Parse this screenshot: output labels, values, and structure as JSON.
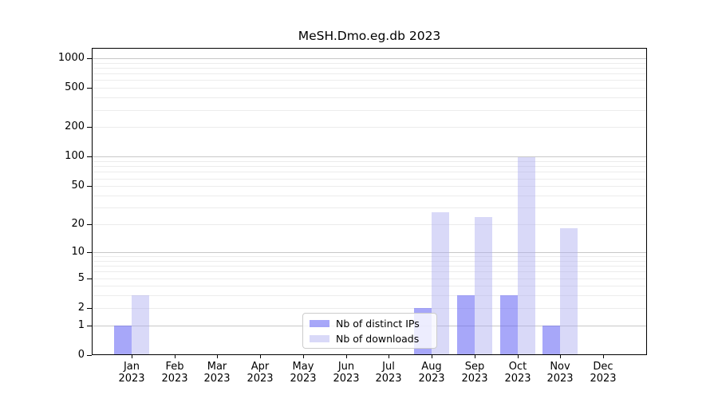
{
  "title": "MeSH.Dmo.eg.db 2023",
  "legend": [
    {
      "label": "Nb of distinct IPs",
      "color": "rgba(100,100,245,0.57)"
    },
    {
      "label": "Nb of downloads",
      "color": "rgba(170,170,240,0.45)"
    }
  ],
  "colors": {
    "bar_distinct_ips": "rgba(100,100,245,0.57)",
    "bar_downloads": "rgba(170,170,240,0.45)",
    "grid_major": "#c8c8c8",
    "grid_minor": "#ececec",
    "axis": "#000000"
  },
  "chart_data": {
    "type": "bar",
    "title": "MeSH.Dmo.eg.db 2023",
    "categories": [
      "Jan 2023",
      "Feb 2023",
      "Mar 2023",
      "Apr 2023",
      "May 2023",
      "Jun 2023",
      "Jul 2023",
      "Aug 2023",
      "Sep 2023",
      "Oct 2023",
      "Nov 2023",
      "Dec 2023"
    ],
    "series": [
      {
        "name": "Nb of distinct IPs",
        "values": [
          1,
          0,
          0,
          0,
          0,
          0,
          0,
          2,
          3,
          3,
          1,
          0
        ],
        "color": "rgba(100,100,245,0.57)"
      },
      {
        "name": "Nb of downloads",
        "values": [
          3,
          0,
          0,
          0,
          0,
          0,
          0,
          27,
          24,
          100,
          18,
          0
        ],
        "color": "rgba(170,170,240,0.45)"
      }
    ],
    "xlabel": "",
    "ylabel": "",
    "y_scale": "log10(1+x)",
    "y_ticks": [
      0,
      1,
      2,
      5,
      10,
      20,
      50,
      100,
      200,
      500,
      1000
    ],
    "y_minor_gridlines": [
      2,
      3,
      4,
      5,
      6,
      7,
      8,
      9,
      20,
      30,
      40,
      50,
      60,
      70,
      80,
      90,
      200,
      300,
      400,
      500,
      600,
      700,
      800,
      900
    ],
    "y_major_gridlines": [
      1,
      10,
      100,
      1000
    ],
    "ylim": [
      0,
      1270
    ],
    "grid": "horizontal",
    "legend_position": "lower center (inside plot)"
  }
}
